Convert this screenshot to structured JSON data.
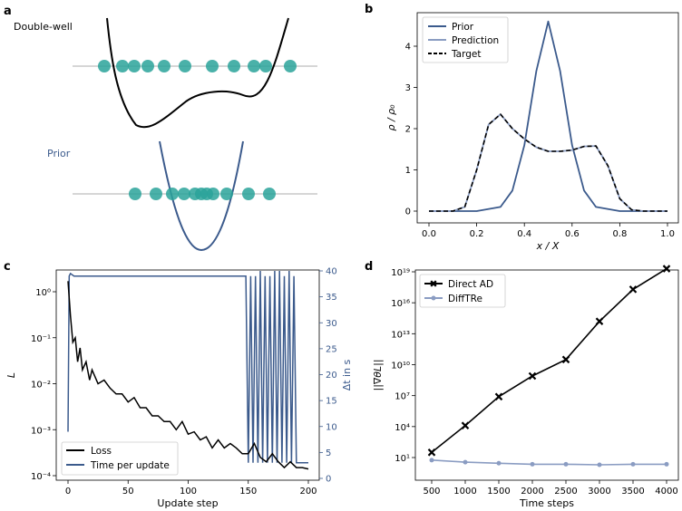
{
  "panels": {
    "a": {
      "letter": "a",
      "double_well_label": "Double-well",
      "prior_label": "Prior"
    },
    "b": {
      "letter": "b",
      "xlabel": "x / X",
      "ylabel": "ρ / ρ₀",
      "legend": [
        "Prior",
        "Prediction",
        "Target"
      ]
    },
    "c": {
      "letter": "c",
      "xlabel": "Update step",
      "ylabel_left": "L",
      "ylabel_right": "Δt in s",
      "legend": [
        "Loss",
        "Time per update"
      ]
    },
    "d": {
      "letter": "d",
      "xlabel": "Time steps",
      "ylabel": "||∇θL||",
      "legend": [
        "Direct AD",
        "DiffTRe"
      ]
    }
  },
  "colors": {
    "black": "#000000",
    "blue": "#3b5a8c",
    "light_blue": "#8a9cc2",
    "teal": "#2aa39a",
    "gray_line": "#bdbdbd"
  },
  "chart_data": [
    {
      "panel": "b",
      "type": "line",
      "xlabel": "x / X",
      "ylabel": "ρ / ρ₀",
      "xlim": [
        0.0,
        1.0
      ],
      "ylim": [
        0,
        4.6
      ],
      "xticks": [
        "0.0",
        "0.2",
        "0.4",
        "0.6",
        "0.8",
        "1.0"
      ],
      "yticks": [
        "0",
        "1",
        "2",
        "3",
        "4"
      ],
      "legend_position": "top-left",
      "series": [
        {
          "name": "Prior",
          "x": [
            0.0,
            0.1,
            0.2,
            0.3,
            0.35,
            0.4,
            0.45,
            0.5,
            0.55,
            0.6,
            0.65,
            0.7,
            0.8,
            0.9,
            1.0
          ],
          "y": [
            0,
            0,
            0,
            0.1,
            0.5,
            1.6,
            3.4,
            4.6,
            3.4,
            1.6,
            0.5,
            0.1,
            0,
            0,
            0
          ]
        },
        {
          "name": "Prediction",
          "x": [
            0.0,
            0.1,
            0.15,
            0.2,
            0.25,
            0.3,
            0.35,
            0.4,
            0.45,
            0.5,
            0.55,
            0.6,
            0.65,
            0.7,
            0.75,
            0.8,
            0.85,
            0.9,
            1.0
          ],
          "y": [
            0,
            0,
            0.1,
            1.0,
            2.1,
            2.35,
            2.0,
            1.75,
            1.55,
            1.45,
            1.45,
            1.48,
            1.57,
            1.58,
            1.1,
            0.3,
            0.03,
            0,
            0
          ]
        },
        {
          "name": "Target",
          "x": [
            0.0,
            0.1,
            0.15,
            0.2,
            0.25,
            0.3,
            0.35,
            0.4,
            0.45,
            0.5,
            0.55,
            0.6,
            0.65,
            0.7,
            0.75,
            0.8,
            0.85,
            0.9,
            1.0
          ],
          "y": [
            0,
            0,
            0.1,
            1.0,
            2.1,
            2.35,
            2.0,
            1.75,
            1.55,
            1.45,
            1.45,
            1.48,
            1.57,
            1.58,
            1.1,
            0.3,
            0.03,
            0,
            0
          ]
        }
      ]
    },
    {
      "panel": "c",
      "type": "line",
      "xlabel": "Update step",
      "ylabel": "L",
      "ylabel_right": "Δt in s",
      "xlim": [
        -5,
        205
      ],
      "ylim_log": [
        0.0001,
        2.5
      ],
      "ylim_right": [
        0,
        40
      ],
      "xticks": [
        "0",
        "50",
        "100",
        "150",
        "200"
      ],
      "yticks_right": [
        "0",
        "5",
        "10",
        "15",
        "20",
        "25",
        "30",
        "35",
        "40"
      ],
      "legend_position": "bottom-left",
      "series": [
        {
          "name": "Loss",
          "x": [
            0,
            2,
            4,
            6,
            8,
            10,
            12,
            15,
            18,
            20,
            25,
            30,
            35,
            40,
            45,
            50,
            55,
            60,
            65,
            70,
            75,
            80,
            85,
            90,
            95,
            100,
            105,
            110,
            115,
            120,
            125,
            130,
            135,
            140,
            145,
            150,
            155,
            160,
            165,
            170,
            175,
            180,
            185,
            190,
            195,
            200
          ],
          "y": [
            1.7,
            0.3,
            0.08,
            0.1,
            0.03,
            0.06,
            0.02,
            0.03,
            0.012,
            0.02,
            0.01,
            0.012,
            0.008,
            0.006,
            0.006,
            0.004,
            0.005,
            0.003,
            0.003,
            0.002,
            0.002,
            0.0015,
            0.0015,
            0.001,
            0.0015,
            0.0008,
            0.0009,
            0.0006,
            0.0007,
            0.0004,
            0.0006,
            0.0004,
            0.0005,
            0.0004,
            0.0003,
            0.0003,
            0.0005,
            0.00025,
            0.0002,
            0.0003,
            0.0002,
            0.00015,
            0.0002,
            0.00015,
            0.00015,
            0.00014
          ]
        },
        {
          "name": "Time per update",
          "x": [
            0,
            1,
            2,
            5,
            10,
            20,
            30,
            40,
            50,
            60,
            70,
            80,
            90,
            100,
            110,
            120,
            130,
            140,
            145,
            148,
            150,
            152,
            154,
            156,
            158,
            160,
            162,
            164,
            166,
            168,
            170,
            172,
            174,
            176,
            178,
            180,
            182,
            184,
            186,
            188,
            190,
            192,
            195,
            200
          ],
          "y": [
            9,
            39,
            39.5,
            39,
            39,
            39,
            39,
            39,
            39,
            39,
            39,
            39,
            39,
            39,
            39,
            39,
            39,
            39,
            39,
            39,
            3,
            39,
            3,
            39,
            3,
            40,
            3,
            39,
            3,
            39,
            3,
            40,
            3,
            40,
            3,
            39,
            3,
            40,
            3,
            39,
            3,
            3,
            3,
            3
          ]
        }
      ]
    },
    {
      "panel": "d",
      "type": "line",
      "xlabel": "Time steps",
      "ylabel": "||∇θL||",
      "y_scale": "log",
      "ylim_exp": [
        -0.5,
        19
      ],
      "categories": [
        "500",
        "1000",
        "1500",
        "2000",
        "2500",
        "3000",
        "3500",
        "4000"
      ],
      "yticks": [
        "10¹",
        "10⁴",
        "10⁷",
        "10¹⁰",
        "10¹³",
        "10¹⁶",
        "10¹⁹"
      ],
      "legend_position": "top-left",
      "series": [
        {
          "name": "Direct AD",
          "x": [
            500,
            1000,
            1500,
            2000,
            2500,
            3000,
            3500,
            4000
          ],
          "log10_y": [
            1.5,
            4.1,
            6.9,
            8.9,
            10.5,
            14.2,
            17.3,
            19.3
          ]
        },
        {
          "name": "DiffTRe",
          "x": [
            500,
            1000,
            1500,
            2000,
            2500,
            3000,
            3500,
            4000
          ],
          "log10_y": [
            0.75,
            0.55,
            0.45,
            0.35,
            0.35,
            0.3,
            0.35,
            0.35
          ]
        }
      ]
    }
  ]
}
